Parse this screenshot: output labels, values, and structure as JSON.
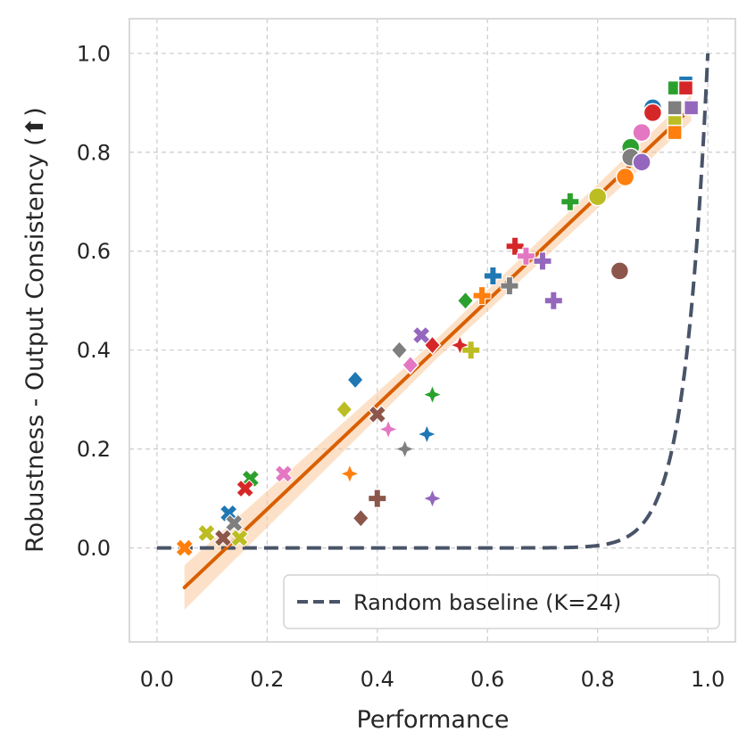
{
  "chart_data": {
    "type": "scatter",
    "title": "",
    "xlabel": "Performance",
    "ylabel": "Robustness - Output Consistency (⬆)",
    "xlim": [
      -0.05,
      1.05
    ],
    "ylim": [
      -0.19,
      1.07
    ],
    "xticks": [
      "0.0",
      "0.2",
      "0.4",
      "0.6",
      "0.8",
      "1.0"
    ],
    "xtick_values": [
      0.0,
      0.2,
      0.4,
      0.6,
      0.8,
      1.0
    ],
    "yticks": [
      "0.0",
      "0.2",
      "0.4",
      "0.6",
      "0.8",
      "1.0"
    ],
    "ytick_values": [
      0.0,
      0.2,
      0.4,
      0.6,
      0.8,
      1.0
    ],
    "grid": true,
    "legend": {
      "location": "lower-right",
      "entries": [
        {
          "label": "Random baseline (K=24)",
          "style": "dashed",
          "color": "#4a5468"
        }
      ]
    },
    "random_baseline": {
      "K": 24,
      "color": "#4a5468"
    },
    "fit_line": {
      "x": [
        0.05,
        0.97
      ],
      "y": [
        -0.08,
        0.89
      ],
      "color": "#d95f02",
      "band_color": "#f9c89b",
      "band_halfwidth": [
        0.045,
        0.02,
        0.045
      ]
    },
    "points": [
      {
        "x": 0.96,
        "y": 0.94,
        "marker": "square",
        "color": "#1f77b4"
      },
      {
        "x": 0.94,
        "y": 0.93,
        "marker": "square",
        "color": "#2ca02c"
      },
      {
        "x": 0.96,
        "y": 0.93,
        "marker": "square",
        "color": "#d62728"
      },
      {
        "x": 0.94,
        "y": 0.89,
        "marker": "square",
        "color": "#7f7f7f"
      },
      {
        "x": 0.97,
        "y": 0.89,
        "marker": "square",
        "color": "#9467bd"
      },
      {
        "x": 0.94,
        "y": 0.86,
        "marker": "square",
        "color": "#bcbd22"
      },
      {
        "x": 0.94,
        "y": 0.84,
        "marker": "square",
        "color": "#ff7f0e"
      },
      {
        "x": 0.9,
        "y": 0.89,
        "marker": "circle",
        "color": "#1f77b4"
      },
      {
        "x": 0.9,
        "y": 0.88,
        "marker": "circle",
        "color": "#d62728"
      },
      {
        "x": 0.88,
        "y": 0.84,
        "marker": "circle",
        "color": "#e377c2"
      },
      {
        "x": 0.86,
        "y": 0.81,
        "marker": "circle",
        "color": "#2ca02c"
      },
      {
        "x": 0.86,
        "y": 0.79,
        "marker": "circle",
        "color": "#7f7f7f"
      },
      {
        "x": 0.88,
        "y": 0.78,
        "marker": "circle",
        "color": "#9467bd"
      },
      {
        "x": 0.85,
        "y": 0.75,
        "marker": "circle",
        "color": "#ff7f0e"
      },
      {
        "x": 0.8,
        "y": 0.71,
        "marker": "circle",
        "color": "#bcbd22"
      },
      {
        "x": 0.84,
        "y": 0.56,
        "marker": "circle",
        "color": "#8c564b"
      },
      {
        "x": 0.75,
        "y": 0.7,
        "marker": "plus",
        "color": "#2ca02c"
      },
      {
        "x": 0.65,
        "y": 0.61,
        "marker": "plus",
        "color": "#d62728"
      },
      {
        "x": 0.67,
        "y": 0.59,
        "marker": "plus",
        "color": "#e377c2"
      },
      {
        "x": 0.7,
        "y": 0.58,
        "marker": "plus",
        "color": "#9467bd"
      },
      {
        "x": 0.61,
        "y": 0.55,
        "marker": "plus",
        "color": "#1f77b4"
      },
      {
        "x": 0.64,
        "y": 0.53,
        "marker": "plus",
        "color": "#7f7f7f"
      },
      {
        "x": 0.59,
        "y": 0.51,
        "marker": "plus",
        "color": "#ff7f0e"
      },
      {
        "x": 0.72,
        "y": 0.5,
        "marker": "plus",
        "color": "#9467bd"
      },
      {
        "x": 0.57,
        "y": 0.4,
        "marker": "plus",
        "color": "#bcbd22"
      },
      {
        "x": 0.4,
        "y": 0.1,
        "marker": "plus",
        "color": "#8c564b"
      },
      {
        "x": 0.56,
        "y": 0.5,
        "marker": "diamond",
        "color": "#2ca02c"
      },
      {
        "x": 0.5,
        "y": 0.41,
        "marker": "diamond",
        "color": "#d62728"
      },
      {
        "x": 0.44,
        "y": 0.4,
        "marker": "diamond",
        "color": "#7f7f7f"
      },
      {
        "x": 0.46,
        "y": 0.37,
        "marker": "diamond",
        "color": "#e377c2"
      },
      {
        "x": 0.36,
        "y": 0.34,
        "marker": "diamond",
        "color": "#1f77b4"
      },
      {
        "x": 0.34,
        "y": 0.28,
        "marker": "diamond",
        "color": "#bcbd22"
      },
      {
        "x": 0.37,
        "y": 0.06,
        "marker": "diamond",
        "color": "#8c564b"
      },
      {
        "x": 0.48,
        "y": 0.43,
        "marker": "x",
        "color": "#9467bd"
      },
      {
        "x": 0.4,
        "y": 0.27,
        "marker": "x",
        "color": "#8c564b"
      },
      {
        "x": 0.23,
        "y": 0.15,
        "marker": "x",
        "color": "#e377c2"
      },
      {
        "x": 0.17,
        "y": 0.14,
        "marker": "x",
        "color": "#2ca02c"
      },
      {
        "x": 0.16,
        "y": 0.12,
        "marker": "x",
        "color": "#d62728"
      },
      {
        "x": 0.13,
        "y": 0.07,
        "marker": "x",
        "color": "#1f77b4"
      },
      {
        "x": 0.14,
        "y": 0.05,
        "marker": "x",
        "color": "#7f7f7f"
      },
      {
        "x": 0.09,
        "y": 0.03,
        "marker": "x",
        "color": "#bcbd22"
      },
      {
        "x": 0.12,
        "y": 0.02,
        "marker": "x",
        "color": "#8c564b"
      },
      {
        "x": 0.15,
        "y": 0.02,
        "marker": "x",
        "color": "#bcbd22"
      },
      {
        "x": 0.05,
        "y": 0.0,
        "marker": "x",
        "color": "#ff7f0e"
      },
      {
        "x": 0.55,
        "y": 0.41,
        "marker": "star",
        "color": "#d62728"
      },
      {
        "x": 0.5,
        "y": 0.31,
        "marker": "star",
        "color": "#2ca02c"
      },
      {
        "x": 0.42,
        "y": 0.24,
        "marker": "star",
        "color": "#e377c2"
      },
      {
        "x": 0.49,
        "y": 0.23,
        "marker": "star",
        "color": "#1f77b4"
      },
      {
        "x": 0.45,
        "y": 0.2,
        "marker": "star",
        "color": "#7f7f7f"
      },
      {
        "x": 0.35,
        "y": 0.15,
        "marker": "star",
        "color": "#ff7f0e"
      },
      {
        "x": 0.5,
        "y": 0.1,
        "marker": "star",
        "color": "#9467bd"
      }
    ]
  }
}
